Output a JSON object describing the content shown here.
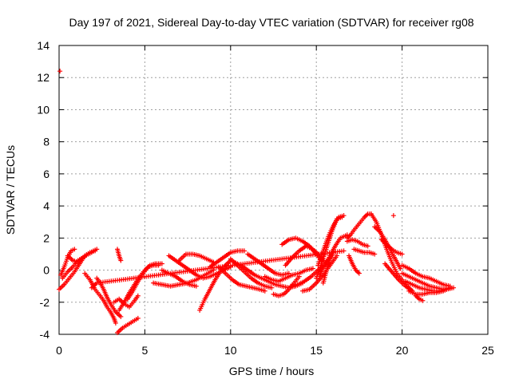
{
  "chart_data": {
    "type": "scatter",
    "title": "Day 197 of 2021, Sidereal Day-to-day VTEC variation (SDTVAR) for receiver rg08",
    "xlabel": "GPS time / hours",
    "ylabel": "SDTVAR / TECUs",
    "xlim": [
      0,
      25
    ],
    "ylim": [
      -4,
      14
    ],
    "xticks": [
      "0",
      "5",
      "10",
      "15",
      "20",
      "25"
    ],
    "yticks": [
      "-4",
      "-2",
      "0",
      "2",
      "4",
      "6",
      "8",
      "10",
      "12",
      "14"
    ],
    "grid": true,
    "marker": "+",
    "color": "#ff0000",
    "series": [
      {
        "name": "outlier",
        "x": [
          0.05
        ],
        "y": [
          12.4
        ]
      },
      {
        "name": "track-01",
        "x": [
          0.0,
          0.3,
          0.6,
          0.9,
          1.2,
          1.5,
          1.8,
          2.1
        ],
        "y": [
          -1.2,
          -0.9,
          -0.5,
          -0.1,
          0.4,
          0.9,
          1.1,
          1.2
        ]
      },
      {
        "name": "track-02",
        "x": [
          0.1,
          0.3,
          0.5,
          0.7,
          0.9
        ],
        "y": [
          -0.3,
          0.2,
          0.8,
          1.2,
          1.3
        ]
      },
      {
        "name": "track-03",
        "x": [
          0.5,
          0.8,
          1.1,
          1.4,
          1.7,
          1.9
        ],
        "y": [
          0.9,
          0.6,
          0.5,
          0.8,
          1.0,
          1.1
        ]
      },
      {
        "name": "track-04",
        "x": [
          0.2,
          0.5,
          0.8,
          1.1,
          1.4,
          1.7,
          2.0,
          2.2
        ],
        "y": [
          -0.5,
          -0.1,
          0.2,
          0.6,
          0.8,
          1.0,
          1.2,
          1.3
        ]
      },
      {
        "name": "track-05",
        "x": [
          1.5,
          1.8,
          2.1,
          2.4,
          2.6,
          2.8,
          3.0,
          3.2,
          3.3
        ],
        "y": [
          -0.2,
          -0.6,
          -1.2,
          -1.6,
          -1.9,
          -2.3,
          -2.6,
          -3.0,
          -3.3
        ]
      },
      {
        "name": "track-06",
        "x": [
          2.2,
          2.4,
          2.6,
          2.8,
          3.0,
          3.3,
          3.6
        ],
        "y": [
          -0.5,
          -0.8,
          -1.2,
          -1.7,
          -2.1,
          -2.6,
          -2.9
        ]
      },
      {
        "name": "track-07",
        "x": [
          3.2,
          3.5,
          3.8,
          4.1,
          4.4,
          4.6
        ],
        "y": [
          -2.0,
          -1.8,
          -2.1,
          -2.3,
          -1.9,
          -1.6
        ]
      },
      {
        "name": "track-08",
        "x": [
          3.4,
          3.7,
          4.0,
          4.3,
          4.6
        ],
        "y": [
          -3.9,
          -3.6,
          -3.4,
          -3.2,
          -3.0
        ]
      },
      {
        "name": "track-09",
        "x": [
          3.5,
          3.8,
          4.1,
          4.4,
          4.7,
          5.0,
          5.3,
          5.6,
          6.0
        ],
        "y": [
          -2.5,
          -2.0,
          -1.4,
          -0.9,
          -0.4,
          0.0,
          0.3,
          0.4,
          0.4
        ]
      },
      {
        "name": "track-10",
        "x": [
          4.0,
          4.3,
          4.6,
          4.9,
          5.2,
          5.5,
          5.8
        ],
        "y": [
          -1.8,
          -1.3,
          -0.7,
          -0.2,
          0.2,
          0.3,
          0.3
        ]
      },
      {
        "name": "track-11",
        "x": [
          3.4,
          3.5,
          3.6
        ],
        "y": [
          1.3,
          0.9,
          0.6
        ]
      },
      {
        "name": "track-12",
        "x": [
          5.5,
          6.0,
          6.5,
          7.0,
          7.5,
          8.0,
          8.5,
          9.0
        ],
        "y": [
          -0.8,
          -0.9,
          -1.0,
          -0.9,
          -0.8,
          -0.6,
          -0.3,
          0.0
        ]
      },
      {
        "name": "track-13",
        "x": [
          6.0,
          6.4,
          6.8,
          7.2,
          7.6,
          8.0
        ],
        "y": [
          0.0,
          -0.2,
          -0.4,
          -0.7,
          -0.9,
          -1.0
        ]
      },
      {
        "name": "track-14",
        "x": [
          6.4,
          6.8,
          7.2,
          7.6,
          8.0,
          8.4,
          8.8,
          9.2,
          9.6,
          10.0
        ],
        "y": [
          0.9,
          0.6,
          0.3,
          0.0,
          -0.3,
          -0.5,
          -0.4,
          -0.2,
          0.0,
          0.2
        ]
      },
      {
        "name": "track-15",
        "x": [
          7.0,
          7.4,
          7.8,
          8.2,
          8.6,
          9.0
        ],
        "y": [
          0.6,
          1.0,
          1.0,
          0.9,
          0.7,
          0.5
        ]
      },
      {
        "name": "track-16",
        "x": [
          8.2,
          8.5,
          8.8,
          9.1,
          9.4,
          9.7,
          10.0
        ],
        "y": [
          -2.5,
          -1.8,
          -1.2,
          -0.6,
          -0.1,
          0.3,
          0.6
        ]
      },
      {
        "name": "track-17",
        "x": [
          8.8,
          9.2,
          9.6,
          10.0,
          10.4,
          10.8
        ],
        "y": [
          0.2,
          0.5,
          0.8,
          1.1,
          1.2,
          1.2
        ]
      },
      {
        "name": "track-18",
        "x": [
          9.3,
          9.7,
          10.1,
          10.5,
          10.9,
          11.3,
          11.7,
          12.0
        ],
        "y": [
          0.2,
          -0.2,
          -0.6,
          -0.9,
          -1.0,
          -1.1,
          -1.2,
          -1.3
        ]
      },
      {
        "name": "track-19",
        "x": [
          10.0,
          10.4,
          10.8,
          11.2,
          11.6,
          12.0,
          12.4
        ],
        "y": [
          0.7,
          0.3,
          -0.1,
          -0.5,
          -0.8,
          -1.0,
          -1.1
        ]
      },
      {
        "name": "track-20",
        "x": [
          10.2,
          10.6,
          11.0,
          11.4,
          11.8,
          12.2,
          12.6,
          13.0,
          13.4,
          13.8,
          14.2
        ],
        "y": [
          0.5,
          0.3,
          0.0,
          -0.3,
          -0.5,
          -0.7,
          -0.9,
          -1.0,
          -1.1,
          -1.0,
          -0.8
        ]
      },
      {
        "name": "track-21",
        "x": [
          11.0,
          11.4,
          11.8,
          12.2,
          12.6,
          13.0,
          13.4
        ],
        "y": [
          1.0,
          0.7,
          0.4,
          0.1,
          -0.2,
          -0.3,
          -0.2
        ]
      },
      {
        "name": "track-22",
        "x": [
          12.5,
          12.8,
          13.1,
          13.4,
          13.7,
          14.0
        ],
        "y": [
          -1.5,
          -1.6,
          -1.5,
          -1.2,
          -0.8,
          -0.4
        ]
      },
      {
        "name": "track-23",
        "x": [
          12.0,
          12.4,
          12.8,
          13.2,
          13.6,
          14.0,
          14.4,
          14.8
        ],
        "y": [
          -0.4,
          -0.6,
          -0.7,
          -0.5,
          -0.3,
          -0.2,
          0.0,
          0.1
        ]
      },
      {
        "name": "track-24",
        "x": [
          13.2,
          13.6,
          14.0,
          14.4,
          14.8,
          15.2,
          15.5
        ],
        "y": [
          0.3,
          0.8,
          1.2,
          1.5,
          1.3,
          0.9,
          0.5
        ]
      },
      {
        "name": "track-25",
        "x": [
          13.0,
          13.4,
          13.8,
          14.2,
          14.6,
          15.0,
          15.3
        ],
        "y": [
          1.6,
          1.9,
          2.0,
          1.8,
          1.5,
          1.0,
          0.6
        ]
      },
      {
        "name": "track-26",
        "x": [
          13.5,
          13.9,
          14.3,
          14.7,
          15.1,
          15.5,
          15.9
        ],
        "y": [
          -1.0,
          -0.9,
          -0.7,
          -0.4,
          0.0,
          0.4,
          0.9
        ]
      },
      {
        "name": "track-27",
        "x": [
          14.2,
          14.6,
          15.0,
          15.4,
          15.8,
          16.2
        ],
        "y": [
          -1.3,
          -1.2,
          -0.8,
          -0.3,
          0.3,
          0.9
        ]
      },
      {
        "name": "track-28",
        "x": [
          15.0,
          15.3,
          15.6,
          15.9,
          16.2,
          16.5
        ],
        "y": [
          -0.5,
          0.4,
          1.4,
          2.4,
          3.2,
          3.3
        ]
      },
      {
        "name": "track-29",
        "x": [
          15.1,
          15.4,
          15.7,
          16.0,
          16.3,
          16.6
        ],
        "y": [
          0.3,
          1.2,
          2.1,
          2.8,
          3.3,
          3.4
        ]
      },
      {
        "name": "track-30",
        "x": [
          15.2,
          15.5,
          15.8,
          16.1,
          16.4,
          16.8
        ],
        "y": [
          -0.3,
          0.3,
          0.9,
          1.5,
          2.0,
          2.2
        ]
      },
      {
        "name": "track-31",
        "x": [
          15.4,
          15.6,
          15.8,
          16.0
        ],
        "y": [
          -0.8,
          0.0,
          0.7,
          1.1
        ]
      },
      {
        "name": "track-32",
        "x": [
          16.8,
          17.0,
          17.2,
          17.5,
          17.8,
          18.0,
          18.2
        ],
        "y": [
          2.0,
          2.2,
          2.5,
          2.9,
          3.3,
          3.5,
          3.5
        ]
      },
      {
        "name": "track-33",
        "x": [
          16.8,
          17.1,
          17.4,
          17.7,
          18.0
        ],
        "y": [
          1.8,
          1.9,
          1.8,
          1.6,
          1.5
        ]
      },
      {
        "name": "track-34",
        "x": [
          16.9,
          17.1,
          17.3,
          17.5
        ],
        "y": [
          0.9,
          0.4,
          0.0,
          -0.2
        ]
      },
      {
        "name": "track-35",
        "x": [
          17.2,
          17.5,
          17.8,
          18.1,
          18.4
        ],
        "y": [
          1.3,
          1.2,
          1.1,
          1.1,
          1.0
        ]
      },
      {
        "name": "track-36",
        "x": [
          18.2,
          18.5,
          18.8,
          19.1,
          19.4,
          19.7,
          20.0,
          20.3,
          20.6
        ],
        "y": [
          3.5,
          3.0,
          2.2,
          1.3,
          0.5,
          -0.2,
          -0.6,
          -1.0,
          -1.3
        ]
      },
      {
        "name": "track-37",
        "x": [
          18.4,
          18.7,
          19.0,
          19.3,
          19.6,
          19.9
        ],
        "y": [
          2.7,
          2.4,
          1.9,
          1.3,
          0.7,
          0.1
        ]
      },
      {
        "name": "track-38",
        "x": [
          18.8,
          19.1,
          19.4,
          19.7,
          20.0
        ],
        "y": [
          1.9,
          1.6,
          1.3,
          1.1,
          1.0
        ]
      },
      {
        "name": "track-39",
        "x": [
          19.0,
          19.4,
          19.8,
          20.2,
          20.6
        ],
        "y": [
          0.4,
          -0.1,
          -0.6,
          -1.0,
          -1.3
        ]
      },
      {
        "name": "track-40",
        "x": [
          19.5
        ],
        "y": [
          3.4
        ]
      },
      {
        "name": "track-41",
        "x": [
          20.0,
          20.4,
          20.8,
          21.2,
          21.6,
          22.0,
          22.4,
          22.8
        ],
        "y": [
          0.3,
          0.1,
          -0.2,
          -0.4,
          -0.5,
          -0.7,
          -0.9,
          -1.0
        ]
      },
      {
        "name": "track-42",
        "x": [
          20.0,
          20.4,
          20.8,
          21.2,
          21.6,
          22.0,
          22.4,
          22.8
        ],
        "y": [
          -0.2,
          -0.4,
          -0.6,
          -0.8,
          -1.0,
          -1.1,
          -1.2,
          -1.1
        ]
      },
      {
        "name": "track-43",
        "x": [
          20.2,
          20.6,
          21.0,
          21.4,
          21.8,
          22.2,
          22.6,
          23.0
        ],
        "y": [
          -0.7,
          -0.9,
          -1.1,
          -1.2,
          -1.3,
          -1.3,
          -1.2,
          -1.1
        ]
      },
      {
        "name": "track-44",
        "x": [
          20.4,
          20.8,
          21.2,
          21.6,
          22.0,
          22.4,
          22.8
        ],
        "y": [
          -1.3,
          -1.5,
          -1.5,
          -1.4,
          -1.4,
          -1.3,
          -1.1
        ]
      },
      {
        "name": "track-45",
        "x": [
          20.8,
          21.0,
          21.2
        ],
        "y": [
          -1.6,
          -1.8,
          -1.9
        ]
      },
      {
        "name": "stray",
        "x": [
          1.9,
          2.2,
          16.6
        ],
        "y": [
          -1.1,
          -0.8,
          1.2
        ]
      }
    ]
  }
}
